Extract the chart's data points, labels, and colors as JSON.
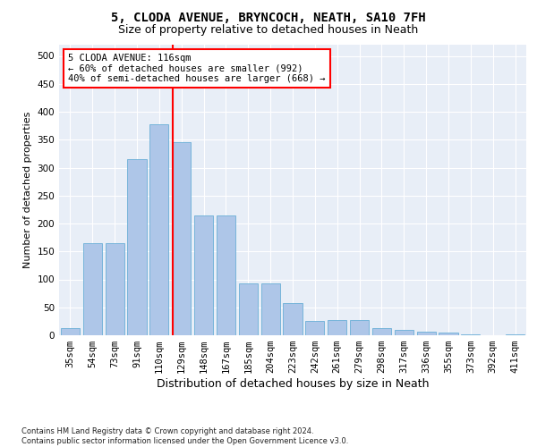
{
  "title1": "5, CLODA AVENUE, BRYNCOCH, NEATH, SA10 7FH",
  "title2": "Size of property relative to detached houses in Neath",
  "xlabel": "Distribution of detached houses by size in Neath",
  "ylabel": "Number of detached properties",
  "footnote": "Contains HM Land Registry data © Crown copyright and database right 2024.\nContains public sector information licensed under the Open Government Licence v3.0.",
  "categories": [
    "35sqm",
    "54sqm",
    "73sqm",
    "91sqm",
    "110sqm",
    "129sqm",
    "148sqm",
    "167sqm",
    "185sqm",
    "204sqm",
    "223sqm",
    "242sqm",
    "261sqm",
    "279sqm",
    "298sqm",
    "317sqm",
    "336sqm",
    "355sqm",
    "373sqm",
    "392sqm",
    "411sqm"
  ],
  "values": [
    13,
    165,
    165,
    315,
    378,
    345,
    215,
    215,
    93,
    93,
    57,
    25,
    28,
    28,
    13,
    10,
    7,
    5,
    2,
    0,
    2
  ],
  "bar_color": "#aec6e8",
  "bar_edge_color": "#6aafd6",
  "vline_x": 4.62,
  "vline_color": "red",
  "annotation_text": "5 CLODA AVENUE: 116sqm\n← 60% of detached houses are smaller (992)\n40% of semi-detached houses are larger (668) →",
  "annotation_box_color": "white",
  "annotation_box_edge_color": "red",
  "ylim": [
    0,
    520
  ],
  "yticks": [
    0,
    50,
    100,
    150,
    200,
    250,
    300,
    350,
    400,
    450,
    500
  ],
  "background_color": "#e8eef7",
  "title1_fontsize": 10,
  "title2_fontsize": 9,
  "xlabel_fontsize": 9,
  "ylabel_fontsize": 8,
  "tick_fontsize": 7.5,
  "footnote_fontsize": 6,
  "ann_fontsize": 7.5
}
